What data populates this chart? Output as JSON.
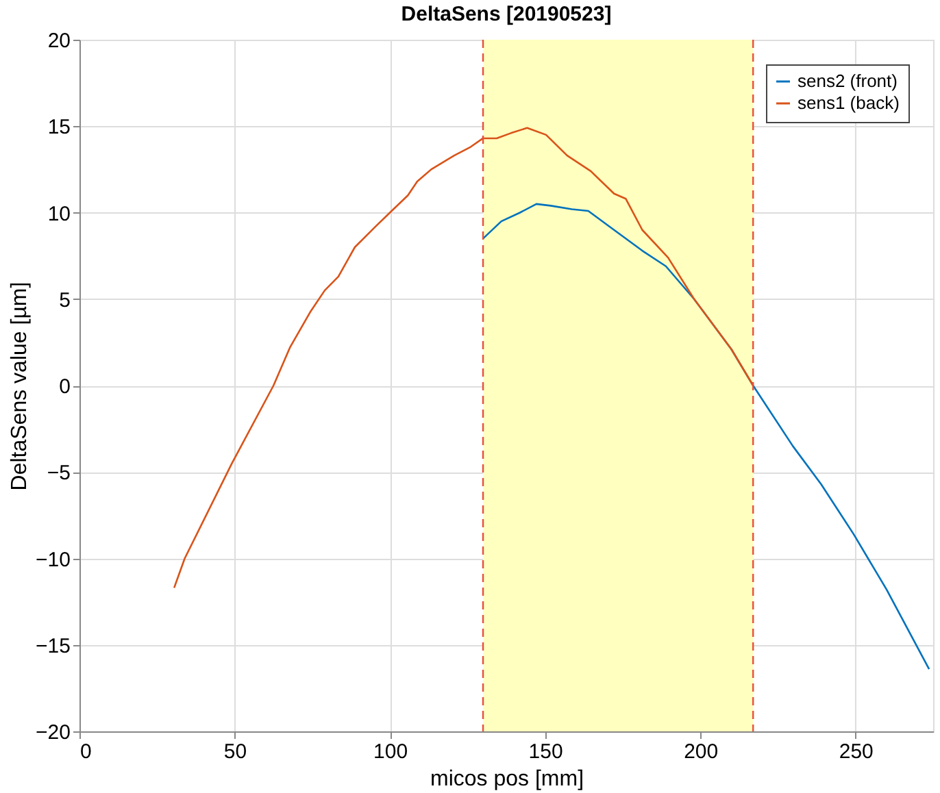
{
  "chart_data": {
    "type": "line",
    "title": "DeltaSens [20190523]",
    "xlabel": "micos pos [mm]",
    "ylabel": "DeltaSens value [µm]",
    "xlim": [
      0,
      275
    ],
    "ylim": [
      -20,
      20
    ],
    "xticks": [
      0,
      50,
      100,
      150,
      200,
      250
    ],
    "yticks": [
      -20,
      -15,
      -10,
      -5,
      0,
      5,
      10,
      15,
      20
    ],
    "grid": true,
    "legend": "top right",
    "line_style": "solid",
    "series": [
      {
        "name": "sens2 (front)",
        "color": "#0072bd",
        "x": [
          130,
          135.9,
          141.9,
          147.2,
          151.8,
          158.6,
          163.9,
          170.7,
          181.3,
          188.9,
          198,
          210,
          217,
          229.8,
          238.9,
          249.4,
          260,
          273.7
        ],
        "values": [
          8.5,
          9.5,
          10.0,
          10.5,
          10.4,
          10.2,
          10.1,
          9.2,
          7.8,
          6.9,
          5.0,
          2.1,
          0,
          -3.5,
          -5.7,
          -8.6,
          -11.8,
          -16.4
        ]
      },
      {
        "name": "sens1 (back)",
        "color": "#d95319",
        "x": [
          30.5,
          33.9,
          49.1,
          62.5,
          67.8,
          74.5,
          79,
          83.4,
          88.7,
          95.4,
          100,
          105.8,
          108.8,
          113.3,
          120.7,
          126,
          130,
          134.4,
          139,
          144.2,
          150.3,
          157.1,
          164.7,
          172.2,
          176,
          181.3,
          189.6,
          198,
          210,
          217
        ],
        "values": [
          -11.7,
          -10,
          -4.5,
          0,
          2.2,
          4.3,
          5.5,
          6.3,
          8.0,
          9.2,
          10,
          11.0,
          11.8,
          12.5,
          13.3,
          13.8,
          14.3,
          14.3,
          14.6,
          14.9,
          14.5,
          13.3,
          12.4,
          11.1,
          10.8,
          9.0,
          7.4,
          5.0,
          2.1,
          0
        ]
      }
    ],
    "bands": [
      {
        "axis": "x",
        "from": 130,
        "to": 217,
        "color": "#ffffc0"
      }
    ],
    "ref_lines": [
      {
        "axis": "x",
        "value": 130,
        "color": "#e8503a",
        "line_style": "dashed"
      },
      {
        "axis": "x",
        "value": 217,
        "color": "#e8503a",
        "line_style": "dashed"
      }
    ]
  }
}
